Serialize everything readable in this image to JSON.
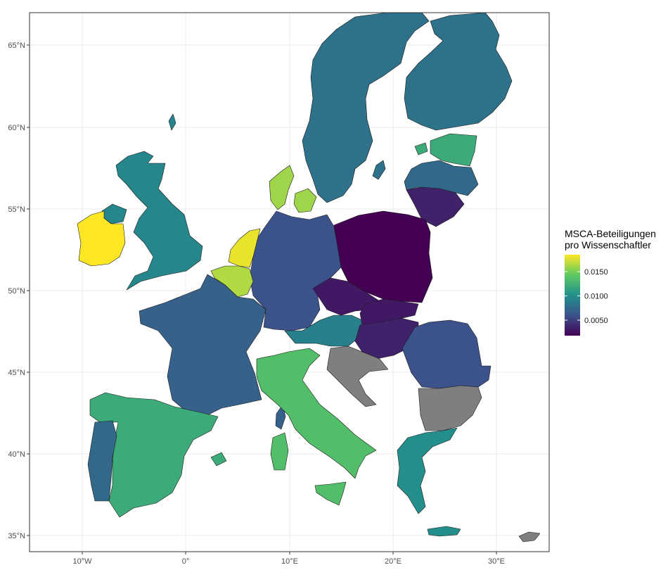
{
  "legend": {
    "title_line1": "MSCA-Beteiligungen",
    "title_line2": "pro Wissenschaftler",
    "ticks": [
      "0.0150",
      "0.0100",
      "0.0050"
    ],
    "tick_values": [
      0.015,
      0.01,
      0.005
    ],
    "range": [
      0.0018,
      0.0185
    ],
    "gradient": [
      "#fde725",
      "#5ec962",
      "#21918c",
      "#3b528b",
      "#440154"
    ]
  },
  "y_axis_labels": [
    "65°N",
    "60°N",
    "55°N",
    "50°N",
    "45°N",
    "40°N",
    "35°N"
  ],
  "x_axis_labels": [
    "10°W",
    "0°",
    "10°E",
    "20°E",
    "30°E"
  ],
  "colors": {
    "no_data": "#7f7f7f",
    "grid": "#ebebeb",
    "panel_border": "#333333"
  },
  "countries": [
    {
      "name": "Ireland",
      "value": 0.0185
    },
    {
      "name": "Netherlands",
      "value": 0.018
    },
    {
      "name": "Belgium",
      "value": 0.0165
    },
    {
      "name": "Denmark",
      "value": 0.016
    },
    {
      "name": "Italy",
      "value": 0.0135
    },
    {
      "name": "Estonia",
      "value": 0.012
    },
    {
      "name": "Spain",
      "value": 0.012
    },
    {
      "name": "Greece",
      "value": 0.01
    },
    {
      "name": "United Kingdom",
      "value": 0.0095
    },
    {
      "name": "Austria",
      "value": 0.009
    },
    {
      "name": "Sweden",
      "value": 0.008
    },
    {
      "name": "Finland",
      "value": 0.008
    },
    {
      "name": "Latvia",
      "value": 0.0075
    },
    {
      "name": "Portugal",
      "value": 0.0075
    },
    {
      "name": "France",
      "value": 0.007
    },
    {
      "name": "Germany",
      "value": 0.006
    },
    {
      "name": "Romania",
      "value": 0.006
    },
    {
      "name": "Lithuania",
      "value": 0.0035
    },
    {
      "name": "Czechia",
      "value": 0.003
    },
    {
      "name": "Slovakia",
      "value": 0.003
    },
    {
      "name": "Hungary",
      "value": 0.0035
    },
    {
      "name": "Poland",
      "value": 0.0018
    },
    {
      "name": "Croatia",
      "value": null
    },
    {
      "name": "Bulgaria",
      "value": null
    },
    {
      "name": "Cyprus",
      "value": null
    }
  ]
}
